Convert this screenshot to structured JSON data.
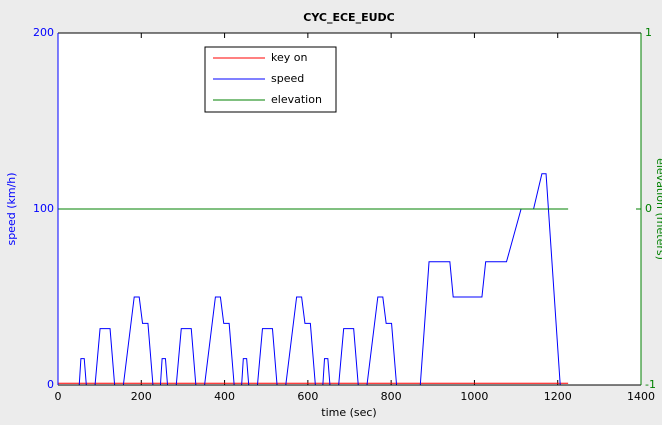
{
  "chart_data": {
    "type": "line",
    "title": "CYC_ECE_EUDC",
    "xlabel": "time (sec)",
    "ylabel": "speed (km/h)",
    "y2label": "elevation (meters)",
    "xlim": [
      0,
      1400
    ],
    "xticks": [
      0,
      200,
      400,
      600,
      800,
      1000,
      1200,
      1400
    ],
    "ylim": [
      0,
      200
    ],
    "yticks": [
      0,
      100,
      200
    ],
    "y2lim": [
      -1,
      1
    ],
    "y2ticks": [
      -1,
      0,
      1
    ],
    "legend": "upper left",
    "series": [
      {
        "name": "key on",
        "color": "#ff0000",
        "x": [
          0,
          1225
        ],
        "values": [
          1,
          1
        ]
      },
      {
        "name": "speed",
        "color": "#0000ff",
        "x": [
          0,
          40,
          51,
          55,
          63,
          68,
          89,
          101,
          125,
          136,
          157,
          183,
          195,
          203,
          216,
          228,
          235,
          246,
          250,
          258,
          263,
          284,
          296,
          320,
          331,
          352,
          378,
          390,
          398,
          411,
          423,
          430,
          441,
          445,
          453,
          458,
          479,
          491,
          515,
          526,
          547,
          573,
          585,
          593,
          606,
          618,
          625,
          636,
          640,
          648,
          653,
          674,
          686,
          710,
          721,
          742,
          768,
          780,
          788,
          801,
          813,
          850,
          870,
          891,
          941,
          949,
          1018,
          1027,
          1077,
          1112,
          1142,
          1162,
          1172,
          1206
        ],
        "values": [
          0,
          0,
          0,
          15,
          15,
          0,
          0,
          32,
          32,
          0,
          0,
          50,
          50,
          35,
          35,
          0,
          0,
          0,
          15,
          15,
          0,
          0,
          32,
          32,
          0,
          0,
          50,
          50,
          35,
          35,
          0,
          0,
          0,
          15,
          15,
          0,
          0,
          32,
          32,
          0,
          0,
          50,
          50,
          35,
          35,
          0,
          0,
          0,
          15,
          15,
          0,
          0,
          32,
          32,
          0,
          0,
          50,
          50,
          35,
          35,
          0,
          0,
          0,
          70,
          70,
          50,
          50,
          70,
          70,
          100,
          100,
          120,
          120,
          0
        ]
      },
      {
        "name": "elevation",
        "color": "#008000",
        "axis": "y2",
        "x": [
          0,
          1225
        ],
        "values": [
          0,
          0
        ]
      }
    ]
  }
}
